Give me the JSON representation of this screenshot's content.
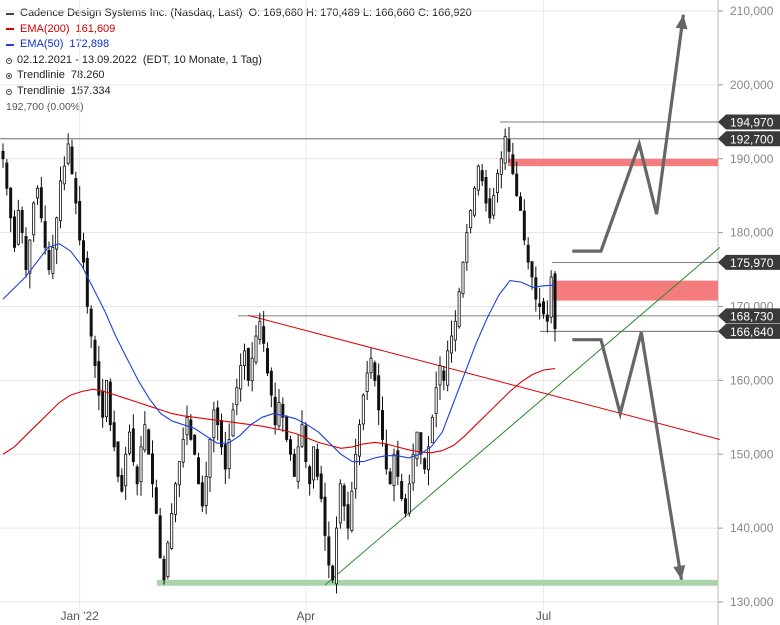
{
  "legend": {
    "title": "Cadence Design Systems Inc. (Nasdaq, Last)",
    "ohlc": "O: 169,680  H: 170,489  L: 166,660  C: 166,920",
    "ema200_label": "EMA(200)",
    "ema200_value": "161,609",
    "ema50_label": "EMA(50)",
    "ema50_value": "172,898",
    "period": "02.12.2021 - 13.09.2022",
    "period_info": "(EDT, 10 Monate, 1 Tag)",
    "trend1_label": "Trendlinie",
    "trend1_value": "78.260",
    "trend2_label": "Trendlinie",
    "trend2_value": "157.334",
    "ref_line_label": "192,700 (0.00%)"
  },
  "colors": {
    "ema200": "#dd0000",
    "ema50": "#1c3fe0",
    "candle": "#111111",
    "resistance_zone": "#f47c7c",
    "support_zone": "#a8d4a8",
    "arrow": "#666666",
    "trend_green": "#2e8b2e",
    "trend_red": "#dd0000",
    "tag_bg": "#3a3a3a"
  },
  "chart_data": {
    "type": "candlestick",
    "title": "Cadence Design Systems Inc. (Nasdaq, Last)",
    "y_ticks": [
      "130,000",
      "140,000",
      "150,000",
      "160,000",
      "170,000",
      "180,000",
      "190,000",
      "200,000",
      "210,000"
    ],
    "y_tick_values": [
      130,
      140,
      150,
      160,
      170,
      180,
      190,
      200,
      210
    ],
    "ylim": [
      127.5,
      210.5
    ],
    "x_labels": [
      "Jan '22",
      "Apr",
      "Jul"
    ],
    "x_label_index": [
      20,
      79,
      141
    ],
    "grid": true,
    "close": [
      190,
      186,
      182,
      178,
      183,
      180,
      175,
      179,
      184,
      186,
      182,
      178,
      175,
      178,
      182,
      187,
      189,
      192,
      188,
      184,
      179,
      176,
      170,
      166,
      162,
      158,
      155,
      160,
      154,
      151,
      147,
      145,
      150,
      153,
      149,
      146,
      151,
      154,
      150,
      146,
      142,
      136,
      133,
      138,
      142,
      146,
      149,
      152,
      155,
      152,
      150,
      146,
      143,
      147,
      152,
      156,
      154,
      151,
      148,
      152,
      156,
      159,
      162,
      164,
      160,
      163,
      166,
      168,
      165,
      161,
      158,
      154,
      157,
      155,
      152,
      150,
      147,
      151,
      154,
      149,
      146,
      151,
      147,
      144,
      139,
      135,
      133,
      140,
      146,
      143,
      140,
      145,
      150,
      154,
      158,
      161,
      163,
      160,
      156,
      152,
      148,
      146,
      150,
      147,
      144,
      142,
      146,
      150,
      153,
      150,
      148,
      151,
      155,
      159,
      162,
      160,
      164,
      166,
      168,
      172,
      176,
      180,
      183,
      186,
      189,
      187,
      184,
      182,
      185,
      188,
      190,
      193,
      191,
      188,
      185,
      183,
      179,
      176,
      174,
      171,
      170,
      169,
      168,
      174,
      167
    ],
    "ema200": [
      150,
      151,
      152.5,
      154,
      155.5,
      157,
      158,
      158.5,
      158.8,
      158.5,
      158,
      157.5,
      157,
      156.5,
      156,
      155.5,
      155.2,
      155,
      154.8,
      154.6,
      154.4,
      154.2,
      154,
      153.8,
      153.5,
      153.2,
      152.8,
      152.2,
      151.6,
      151.2,
      150.8,
      151,
      151.4,
      151.6,
      151.4,
      151,
      150.6,
      150.3,
      150.2,
      150.5,
      151.2,
      152.5,
      154,
      155.5,
      157,
      158.5,
      159.8,
      160.8,
      161.4,
      161.6
    ],
    "ema50": [
      171,
      172.5,
      174,
      176,
      178,
      178.5,
      177.5,
      175.5,
      172.5,
      169.5,
      166,
      163,
      160,
      157.5,
      155.5,
      154.5,
      154,
      153.5,
      152.5,
      151.5,
      151.5,
      152.5,
      154,
      155,
      155.5,
      155.2,
      154.8,
      154,
      153,
      151.5,
      150,
      149,
      149,
      149.5,
      149.8,
      149.8,
      149.5,
      150,
      151,
      153,
      157,
      161,
      165,
      168.5,
      171.5,
      173.5,
      173.3,
      172.6,
      172.8,
      172.9
    ],
    "trendlines": [
      {
        "label": "Trendlinie",
        "value": 78.26,
        "from": [
          84,
          132.3
        ],
        "to": [
          187,
          178
        ]
      },
      {
        "label": "Trendlinie",
        "value": 157.334,
        "from": [
          64,
          168.8
        ],
        "to": [
          187,
          152
        ]
      }
    ],
    "levels": [
      {
        "label": "194,970",
        "value": 194.97
      },
      {
        "label": "192,700",
        "value": 192.7
      },
      {
        "label": "175,970",
        "value": 175.97
      },
      {
        "label": "168,730",
        "value": 168.73
      },
      {
        "label": "166,640",
        "value": 166.64
      }
    ],
    "zones": [
      {
        "name": "resistance-upper",
        "from": 189,
        "to": 190
      },
      {
        "name": "resistance-lower",
        "from": 170.8,
        "to": 173.5
      },
      {
        "name": "support",
        "from": 132.2,
        "to": 133
      }
    ],
    "scenario_up": [
      [
        148.5,
        177.5
      ],
      [
        156,
        177.5
      ],
      [
        166,
        192
      ],
      [
        170.5,
        182.5
      ],
      [
        177.5,
        209.5
      ]
    ],
    "scenario_down": [
      [
        148.5,
        165.5
      ],
      [
        156,
        165.5
      ],
      [
        161,
        155.5
      ],
      [
        166.5,
        166.5
      ],
      [
        177,
        133
      ]
    ]
  }
}
